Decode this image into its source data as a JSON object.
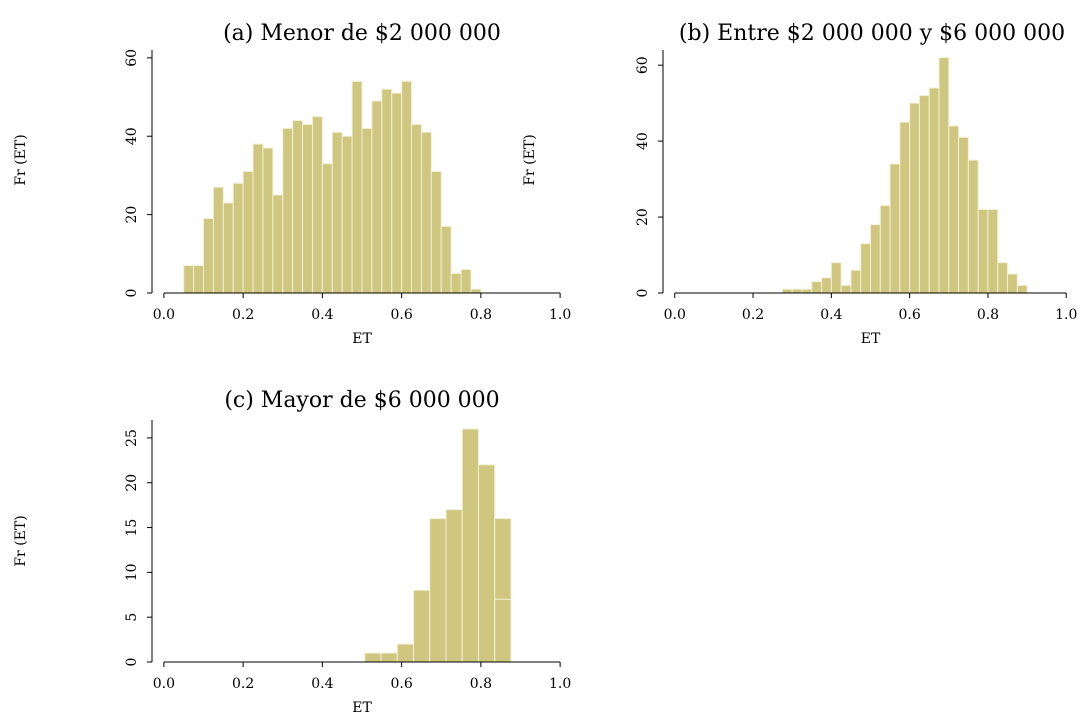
{
  "figure_color": "#cfc77f",
  "chart_data": [
    {
      "type": "bar",
      "title": "(a) Menor de $2 000 000",
      "xlabel": "ET",
      "ylabel": "Fr (ET)",
      "xlim": [
        -0.03,
        1.03
      ],
      "ylim": [
        0,
        62
      ],
      "xticks": [
        0.0,
        0.2,
        0.4,
        0.6,
        0.8,
        1.0
      ],
      "xtick_labels": [
        "0.0",
        "0.2",
        "0.4",
        "0.6",
        "0.8",
        "1.0"
      ],
      "yticks": [
        0,
        20,
        40,
        60
      ],
      "ytick_labels": [
        "0",
        "20",
        "40",
        "60"
      ],
      "bin_width": 0.025,
      "bin_starts": [
        0.05,
        0.075,
        0.1,
        0.125,
        0.15,
        0.175,
        0.2,
        0.225,
        0.25,
        0.275,
        0.3,
        0.325,
        0.35,
        0.375,
        0.4,
        0.425,
        0.45,
        0.475,
        0.5,
        0.525,
        0.55,
        0.575,
        0.6,
        0.625,
        0.65,
        0.675,
        0.7,
        0.725,
        0.75,
        0.775,
        0.8,
        0.825,
        0.85
      ],
      "values": [
        7,
        7,
        19,
        27,
        23,
        28,
        31,
        38,
        37,
        25,
        42,
        44,
        43,
        45,
        33,
        41,
        40,
        54,
        42,
        49,
        52,
        51,
        54,
        43,
        41,
        31,
        17,
        5,
        6,
        1,
        0,
        0,
        0
      ],
      "grid": false
    },
    {
      "type": "bar",
      "title": "(b) Entre $2 000 000 y $6 000 000",
      "xlabel": "ET",
      "ylabel": "Fr (ET)",
      "xlim": [
        -0.03,
        1.03
      ],
      "ylim": [
        0,
        64
      ],
      "xticks": [
        0.0,
        0.2,
        0.4,
        0.6,
        0.8,
        1.0
      ],
      "xtick_labels": [
        "0.0",
        "0.2",
        "0.4",
        "0.6",
        "0.8",
        "1.0"
      ],
      "yticks": [
        0,
        20,
        40,
        60
      ],
      "ytick_labels": [
        "0",
        "20",
        "40",
        "60"
      ],
      "bin_width": 0.025,
      "bin_starts": [
        0.275,
        0.3,
        0.325,
        0.35,
        0.375,
        0.4,
        0.425,
        0.45,
        0.475,
        0.5,
        0.525,
        0.55,
        0.575,
        0.6,
        0.625,
        0.65,
        0.675,
        0.7,
        0.725,
        0.75,
        0.775,
        0.8,
        0.825,
        0.85,
        0.875,
        0.9
      ],
      "values": [
        1,
        1,
        1,
        3,
        4,
        8,
        2,
        6,
        13,
        18,
        23,
        34,
        45,
        50,
        52,
        54,
        62,
        44,
        41,
        35,
        22,
        22,
        8,
        5,
        2,
        0
      ],
      "grid": false
    },
    {
      "type": "bar",
      "title": "(c) Mayor de $6 000 000",
      "xlabel": "ET",
      "ylabel": "Fr (ET)",
      "xlim": [
        -0.03,
        1.03
      ],
      "ylim": [
        0,
        27
      ],
      "xticks": [
        0.0,
        0.2,
        0.4,
        0.6,
        0.8,
        1.0
      ],
      "xtick_labels": [
        "0.0",
        "0.2",
        "0.4",
        "0.6",
        "0.8",
        "1.0"
      ],
      "yticks": [
        0,
        5,
        10,
        15,
        20,
        25
      ],
      "ytick_labels": [
        "0",
        "5",
        "10",
        "15",
        "20",
        "25"
      ],
      "bin_width": 0.041,
      "bin_starts": [
        0.507,
        0.548,
        0.589,
        0.63,
        0.671,
        0.712,
        0.753,
        0.794,
        0.835
      ],
      "values": [
        1,
        1,
        2,
        8,
        16,
        17,
        26,
        22,
        16
      ],
      "extra_bars": [
        {
          "start": 0.835,
          "width": 0.041,
          "value": 7
        }
      ],
      "grid": false
    }
  ]
}
